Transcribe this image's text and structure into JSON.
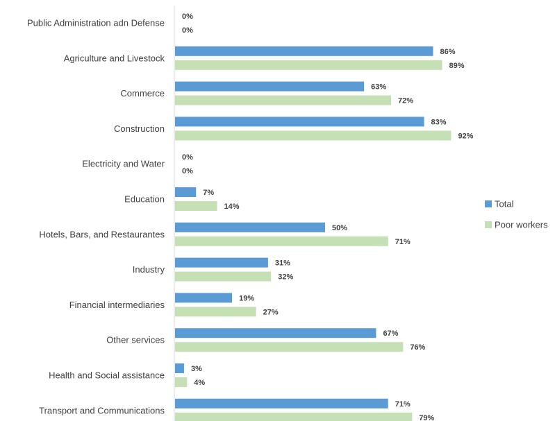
{
  "chart_data": {
    "type": "bar",
    "orientation": "horizontal",
    "categories": [
      "Public Administration adn Defense",
      "Agriculture and Livestock",
      "Commerce",
      "Construction",
      "Electricity and Water",
      "Education",
      "Hotels, Bars, and Restaurantes",
      "Industry",
      "Financial intermediaries",
      "Other services",
      "Health and Social assistance",
      "Transport and Communications"
    ],
    "series": [
      {
        "name": "Total",
        "color": "#5b9bd5",
        "values": [
          0,
          86,
          63,
          83,
          0,
          7,
          50,
          31,
          19,
          67,
          3,
          71
        ],
        "labels": [
          "0%",
          "86%",
          "63%",
          "83%",
          "0%",
          "7%",
          "50%",
          "31%",
          "19%",
          "67%",
          "3%",
          "71%"
        ]
      },
      {
        "name": "Poor workers",
        "color": "#c5e0b4",
        "values": [
          0,
          89,
          72,
          92,
          0,
          14,
          71,
          32,
          27,
          76,
          4,
          79
        ],
        "labels": [
          "0%",
          "89%",
          "72%",
          "92%",
          "0%",
          "14%",
          "71%",
          "32%",
          "27%",
          "76%",
          "4%",
          "79%"
        ]
      }
    ],
    "xlim": [
      0,
      100
    ],
    "unit": "%",
    "grid": false,
    "legend_position": "right",
    "title": "",
    "xlabel": "",
    "ylabel": ""
  }
}
